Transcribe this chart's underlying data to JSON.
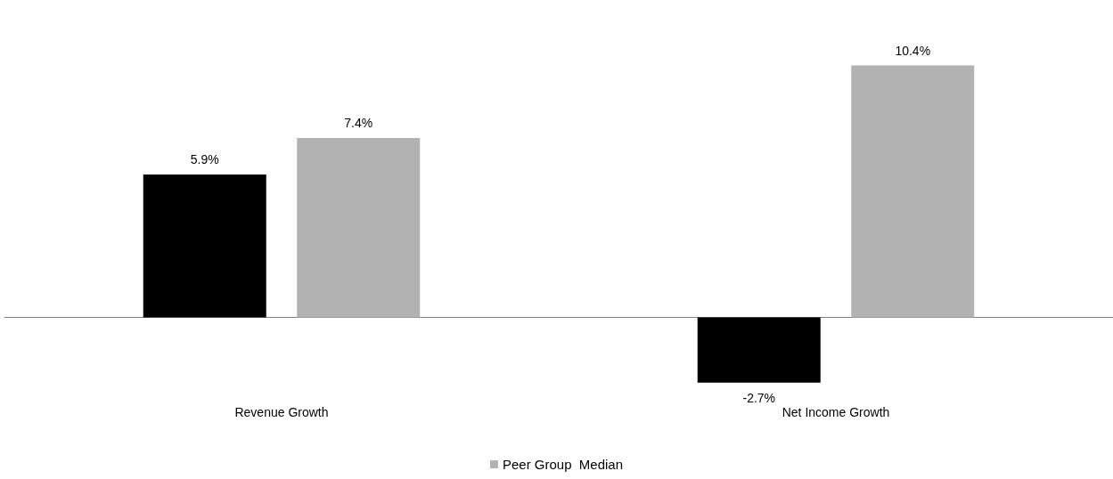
{
  "chart_data": {
    "type": "bar",
    "categories": [
      "Revenue Growth",
      "Net Income Growth"
    ],
    "series": [
      {
        "color": "#000000",
        "values": [
          5.9,
          -2.7
        ],
        "value_labels": [
          "5.9%",
          "-2.7%"
        ]
      },
      {
        "name": "Peer Group  Median",
        "color": "#b2b2b2",
        "values": [
          7.4,
          10.4
        ],
        "value_labels": [
          "7.4%",
          "10.4%"
        ]
      }
    ],
    "legend": "bottom"
  }
}
